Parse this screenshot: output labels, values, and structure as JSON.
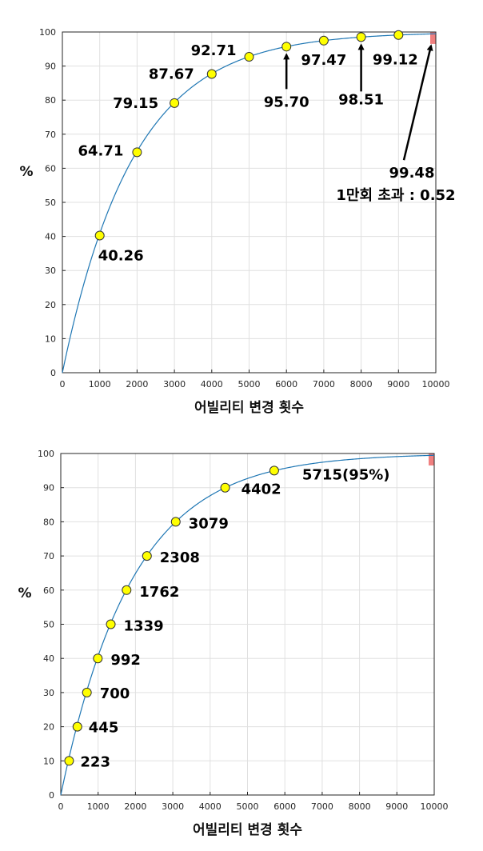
{
  "colors": {
    "curve": "#1f77b4",
    "marker_fill": "#ffff00",
    "marker_stroke": "#333333",
    "highlight": "#f08080",
    "grid": "#e0e0e0",
    "axis": "#262626"
  },
  "chart_data": [
    {
      "type": "line",
      "xlabel": "어빌리티 변경 횟수",
      "ylabel": "%",
      "xlim": [
        0,
        10000
      ],
      "ylim": [
        0,
        100
      ],
      "xticks": [
        0,
        1000,
        2000,
        3000,
        4000,
        5000,
        6000,
        7000,
        8000,
        9000,
        10000
      ],
      "yticks": [
        0,
        10,
        20,
        30,
        40,
        50,
        60,
        70,
        80,
        90,
        100
      ],
      "grid": true,
      "highlight_region": {
        "x": [
          9850,
          10000
        ],
        "y": [
          96.5,
          100
        ]
      },
      "points": [
        {
          "x": 1000,
          "y": 40.26,
          "label": "40.26"
        },
        {
          "x": 2000,
          "y": 64.71,
          "label": "64.71"
        },
        {
          "x": 3000,
          "y": 79.15,
          "label": "79.15"
        },
        {
          "x": 4000,
          "y": 87.67,
          "label": "87.67"
        },
        {
          "x": 5000,
          "y": 92.71,
          "label": "92.71"
        },
        {
          "x": 6000,
          "y": 95.7,
          "label": "95.70"
        },
        {
          "x": 7000,
          "y": 97.47,
          "label": "97.47"
        },
        {
          "x": 8000,
          "y": 98.51,
          "label": "98.51"
        },
        {
          "x": 9000,
          "y": 99.12,
          "label": "99.12"
        },
        {
          "x": 10000,
          "y": 99.48,
          "label": "99.48"
        }
      ],
      "annotation": "1만회 초과 : 0.52"
    },
    {
      "type": "line",
      "xlabel": "어빌리티 변경 횟수",
      "ylabel": "%",
      "xlim": [
        0,
        10000
      ],
      "ylim": [
        0,
        100
      ],
      "xticks": [
        0,
        1000,
        2000,
        3000,
        4000,
        5000,
        6000,
        7000,
        8000,
        9000,
        10000
      ],
      "yticks": [
        0,
        10,
        20,
        30,
        40,
        50,
        60,
        70,
        80,
        90,
        100
      ],
      "grid": true,
      "highlight_region": {
        "x": [
          9850,
          10000
        ],
        "y": [
          96.5,
          100
        ]
      },
      "points": [
        {
          "x": 223,
          "y": 10,
          "label": "223"
        },
        {
          "x": 445,
          "y": 20,
          "label": "445"
        },
        {
          "x": 700,
          "y": 30,
          "label": "700"
        },
        {
          "x": 992,
          "y": 40,
          "label": "992"
        },
        {
          "x": 1339,
          "y": 50,
          "label": "1339"
        },
        {
          "x": 1762,
          "y": 60,
          "label": "1762"
        },
        {
          "x": 2308,
          "y": 70,
          "label": "2308"
        },
        {
          "x": 3079,
          "y": 80,
          "label": "3079"
        },
        {
          "x": 4402,
          "y": 90,
          "label": "4402"
        },
        {
          "x": 5715,
          "y": 95,
          "label": "5715(95%)"
        }
      ]
    }
  ]
}
